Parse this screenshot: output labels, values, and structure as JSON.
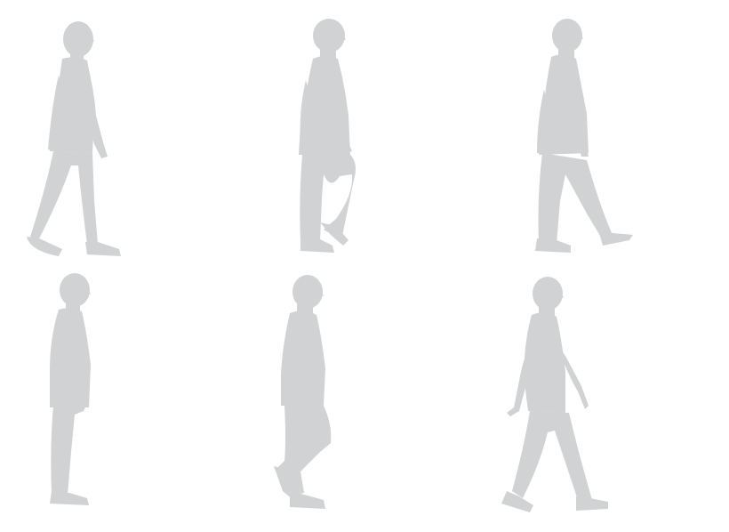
{
  "figures": [
    {
      "pose": "walking-stride-right-arm-forward"
    },
    {
      "pose": "walking-knee-raised"
    },
    {
      "pose": "walking-back-leg-extended"
    },
    {
      "pose": "standing-profile"
    },
    {
      "pose": "walking-back-knee-bent"
    },
    {
      "pose": "walking-arms-swinging"
    }
  ],
  "colors": {
    "background": "#ffffff",
    "silhouette": "#d1d2d4"
  }
}
